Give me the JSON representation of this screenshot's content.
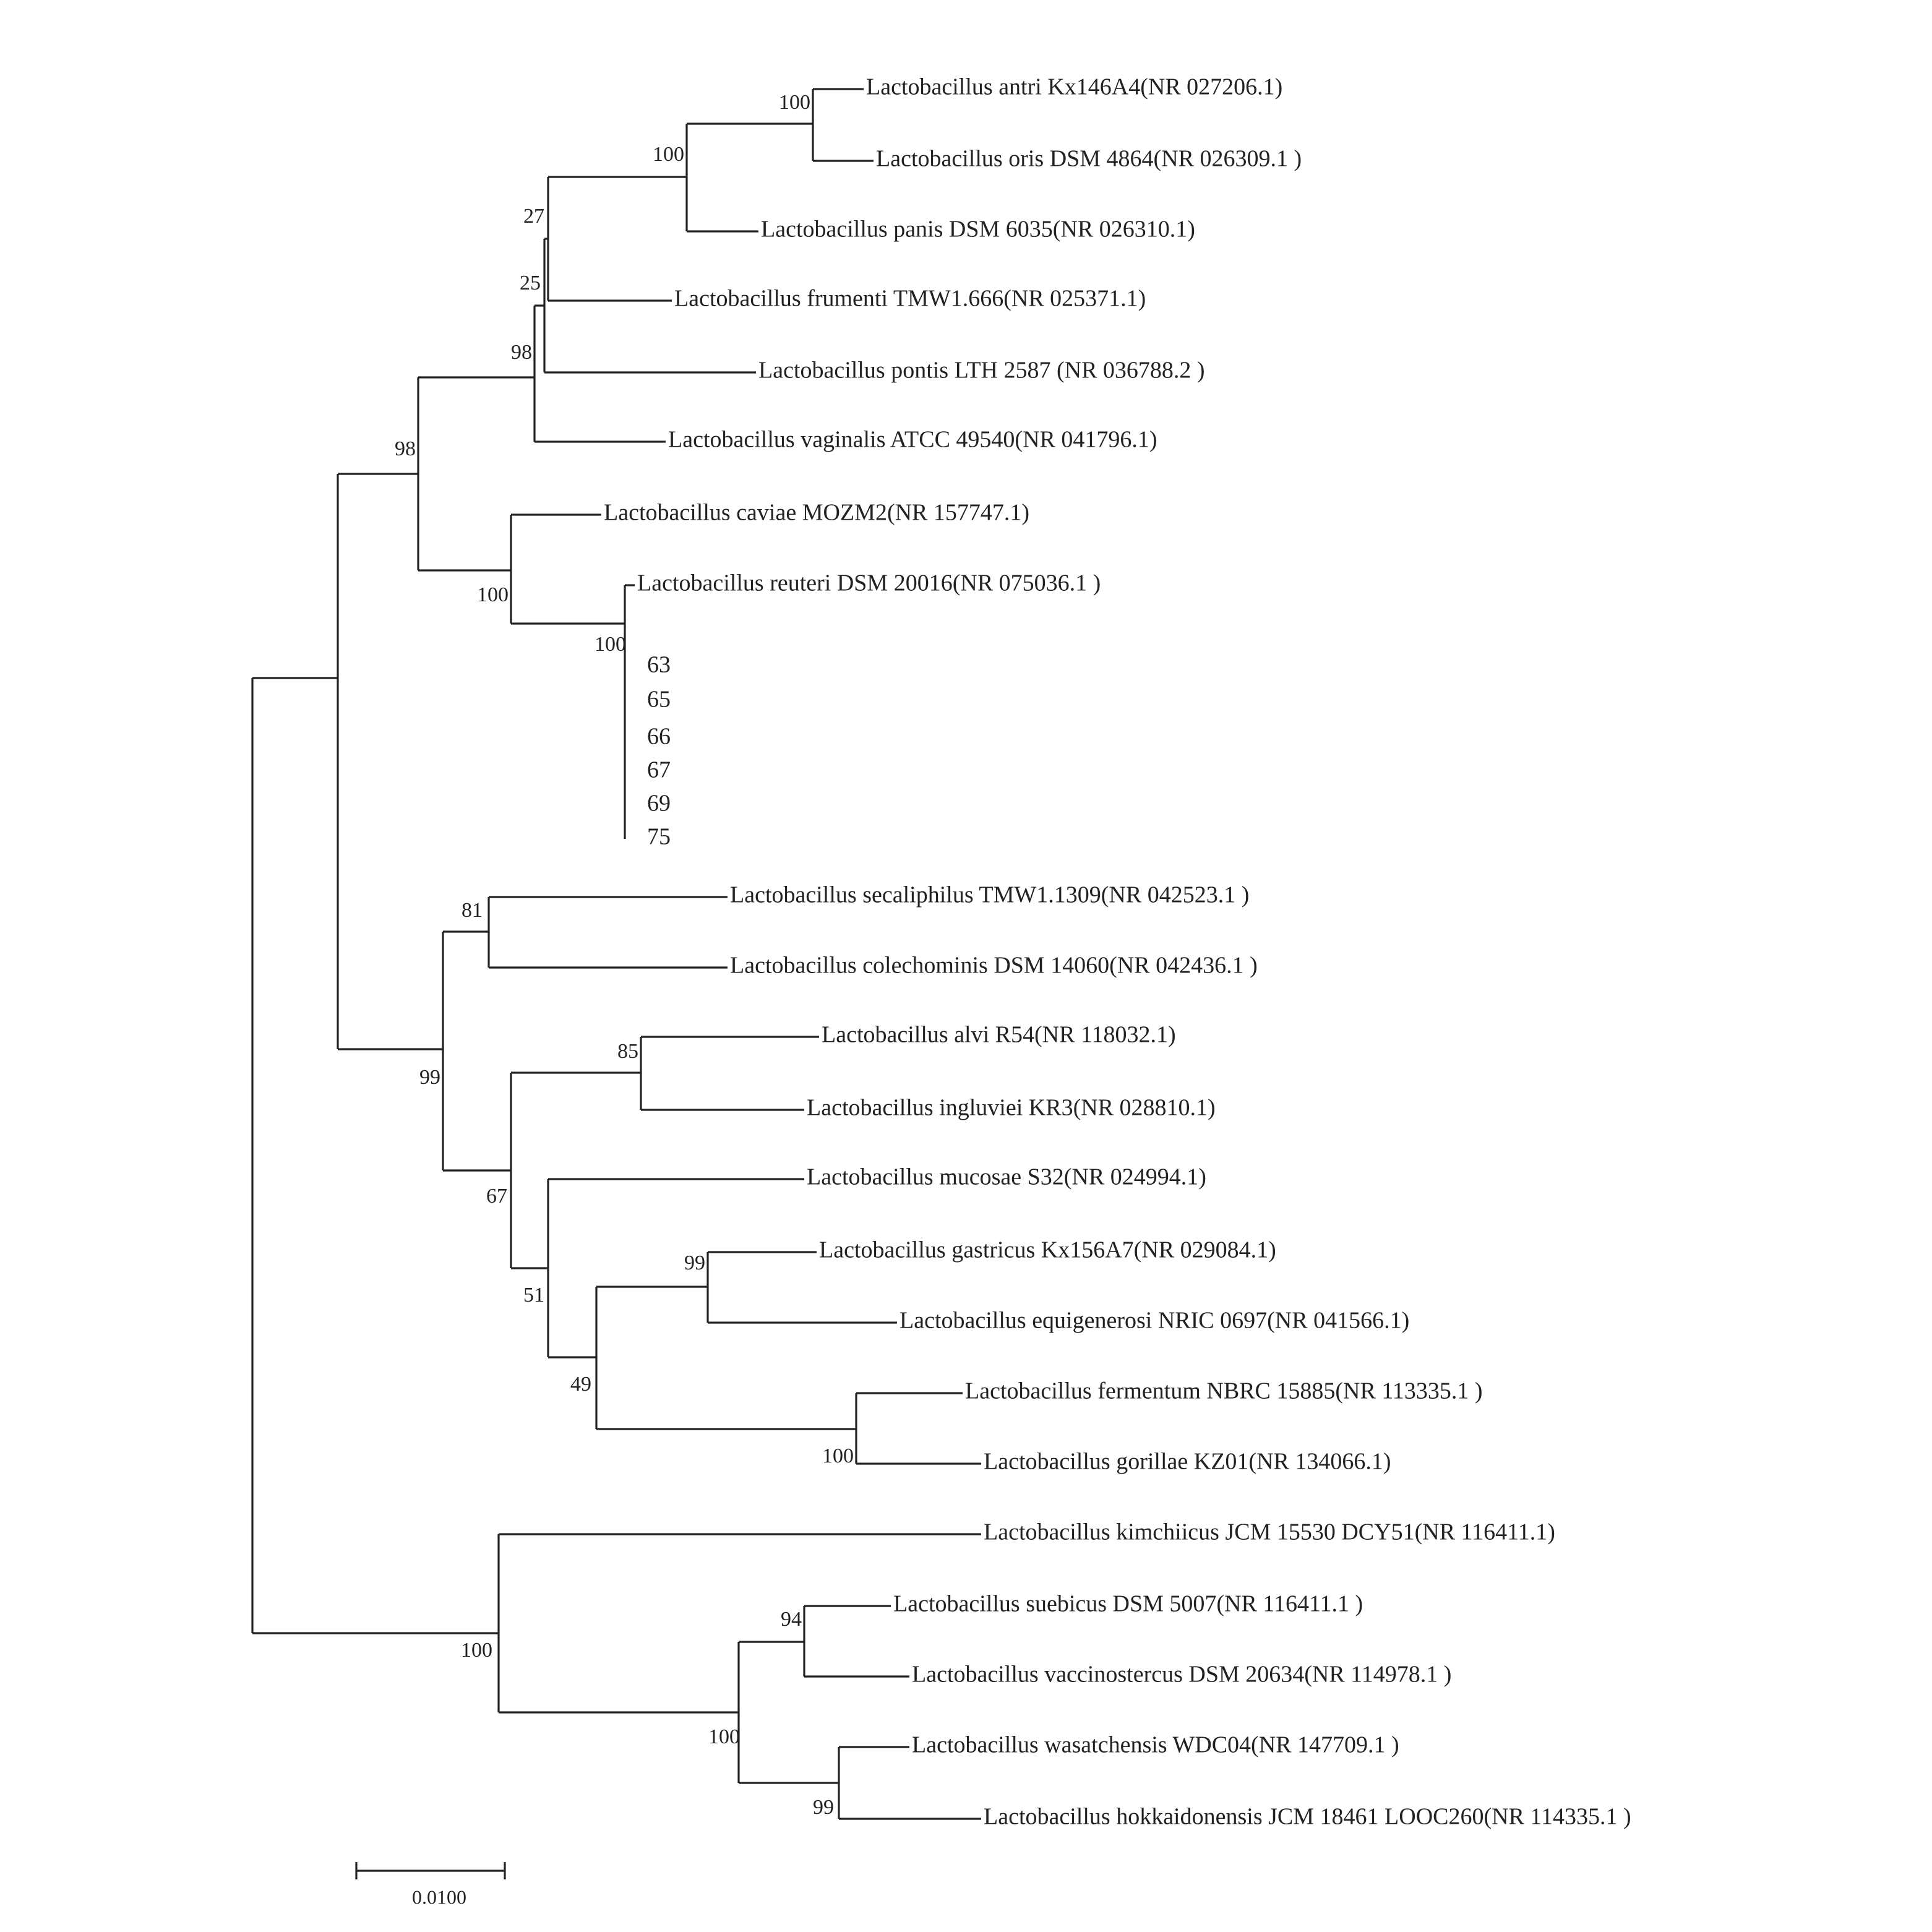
{
  "leaves": [
    "Lactobacillus antri Kx146A4(NR 027206.1)",
    "Lactobacillus oris DSM 4864(NR 026309.1 )",
    "Lactobacillus panis DSM 6035(NR 026310.1)",
    "Lactobacillus frumenti TMW1.666(NR 025371.1)",
    "Lactobacillus pontis LTH 2587 (NR 036788.2 )",
    "Lactobacillus vaginalis ATCC 49540(NR 041796.1)",
    "Lactobacillus caviae MOZM2(NR 157747.1)",
    "Lactobacillus reuteri DSM 20016(NR 075036.1 )",
    "63",
    "65",
    "66",
    "67",
    "69",
    "75",
    "Lactobacillus secaliphilus TMW1.1309(NR 042523.1 )",
    "Lactobacillus colechominis DSM 14060(NR 042436.1 )",
    "Lactobacillus alvi R54(NR 118032.1)",
    "Lactobacillus ingluviei KR3(NR 028810.1)",
    "Lactobacillus mucosae S32(NR 024994.1)",
    "Lactobacillus gastricus Kx156A7(NR 029084.1)",
    "Lactobacillus equigenerosi NRIC 0697(NR 041566.1)",
    "Lactobacillus fermentum NBRC 15885(NR 113335.1 )",
    "Lactobacillus gorillae KZ01(NR 134066.1)",
    "Lactobacillus kimchiicus JCM 15530 DCY51(NR 116411.1)",
    "Lactobacillus suebicus DSM 5007(NR 116411.1 )",
    "Lactobacillus vaccinostercus DSM 20634(NR 114978.1 )",
    "Lactobacillus wasatchensis WDC04(NR 147709.1 )",
    "Lactobacillus hokkaidonensis JCM 18461 LOOC260(NR 114335.1 )"
  ],
  "supports": [
    100,
    100,
    27,
    25,
    98,
    98,
    100,
    100,
    81,
    99,
    85,
    67,
    51,
    99,
    49,
    100,
    100,
    94,
    100,
    99
  ],
  "scale_bar": {
    "label": "0.0100"
  }
}
